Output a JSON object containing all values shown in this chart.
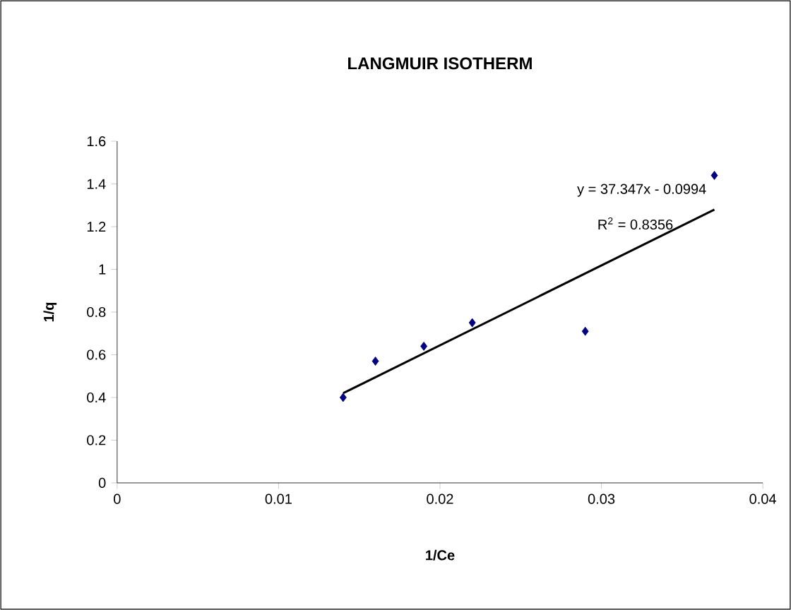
{
  "chart_data": {
    "type": "scatter",
    "title": "LANGMUIR ISOTHERM",
    "xlabel": "1/Ce",
    "ylabel": "1/q",
    "series": [
      {
        "color": "#000080",
        "marker": "diamond",
        "x": [
          0.014,
          0.016,
          0.019,
          0.022,
          0.029,
          0.037
        ],
        "values": [
          0.4,
          0.57,
          0.64,
          0.75,
          0.71,
          1.44
        ]
      },
      {
        "type": "line",
        "color": "#000000",
        "line_style": "solid",
        "x": [
          0.014,
          0.037
        ],
        "values": [
          0.42,
          1.28
        ]
      }
    ],
    "annotations": [
      "y = 37.347x - 0.0994",
      "R$^{2}$ = 0.8356"
    ],
    "xlim": [
      0,
      0.04
    ],
    "xticks": [
      0,
      0.01,
      0.02,
      0.03,
      0.04
    ],
    "ylim": [
      0,
      1.6
    ],
    "yticks": [
      0,
      0.2,
      0.4,
      0.6,
      0.8,
      1,
      1.2,
      1.4,
      1.6
    ],
    "grid": false
  }
}
